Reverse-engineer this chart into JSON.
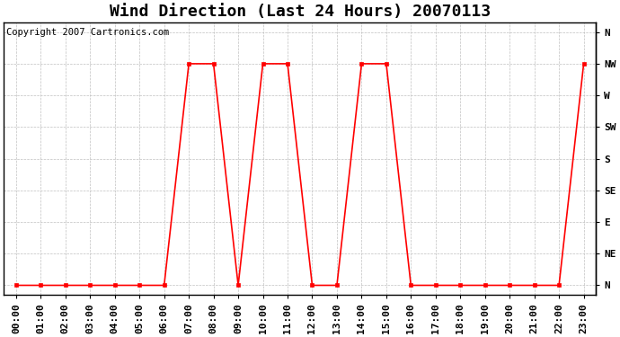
{
  "title": "Wind Direction (Last 24 Hours) 20070113",
  "copyright_text": "Copyright 2007 Cartronics.com",
  "x_labels": [
    "00:00",
    "01:00",
    "02:00",
    "03:00",
    "04:00",
    "05:00",
    "06:00",
    "07:00",
    "08:00",
    "09:00",
    "10:00",
    "11:00",
    "12:00",
    "13:00",
    "14:00",
    "15:00",
    "16:00",
    "17:00",
    "18:00",
    "19:00",
    "20:00",
    "21:00",
    "22:00",
    "23:00"
  ],
  "y_labels": [
    "N",
    "NE",
    "E",
    "SE",
    "S",
    "SW",
    "W",
    "NW",
    "N"
  ],
  "y_values": [
    0,
    1,
    2,
    3,
    4,
    5,
    6,
    7,
    8
  ],
  "data_hours": [
    0,
    1,
    2,
    3,
    4,
    5,
    6,
    7,
    8,
    9,
    10,
    11,
    12,
    13,
    14,
    15,
    16,
    17,
    18,
    19,
    20,
    21,
    22,
    23
  ],
  "data_directions": [
    0,
    0,
    0,
    0,
    0,
    0,
    0,
    7,
    7,
    0,
    7,
    7,
    0,
    0,
    7,
    7,
    0,
    0,
    0,
    0,
    0,
    0,
    0,
    7
  ],
  "line_color": "#ff0000",
  "marker_color": "#ff0000",
  "bg_color": "#ffffff",
  "plot_bg_color": "#ffffff",
  "grid_color": "#c0c0c0",
  "title_fontsize": 13,
  "label_fontsize": 8,
  "copyright_fontsize": 7.5
}
